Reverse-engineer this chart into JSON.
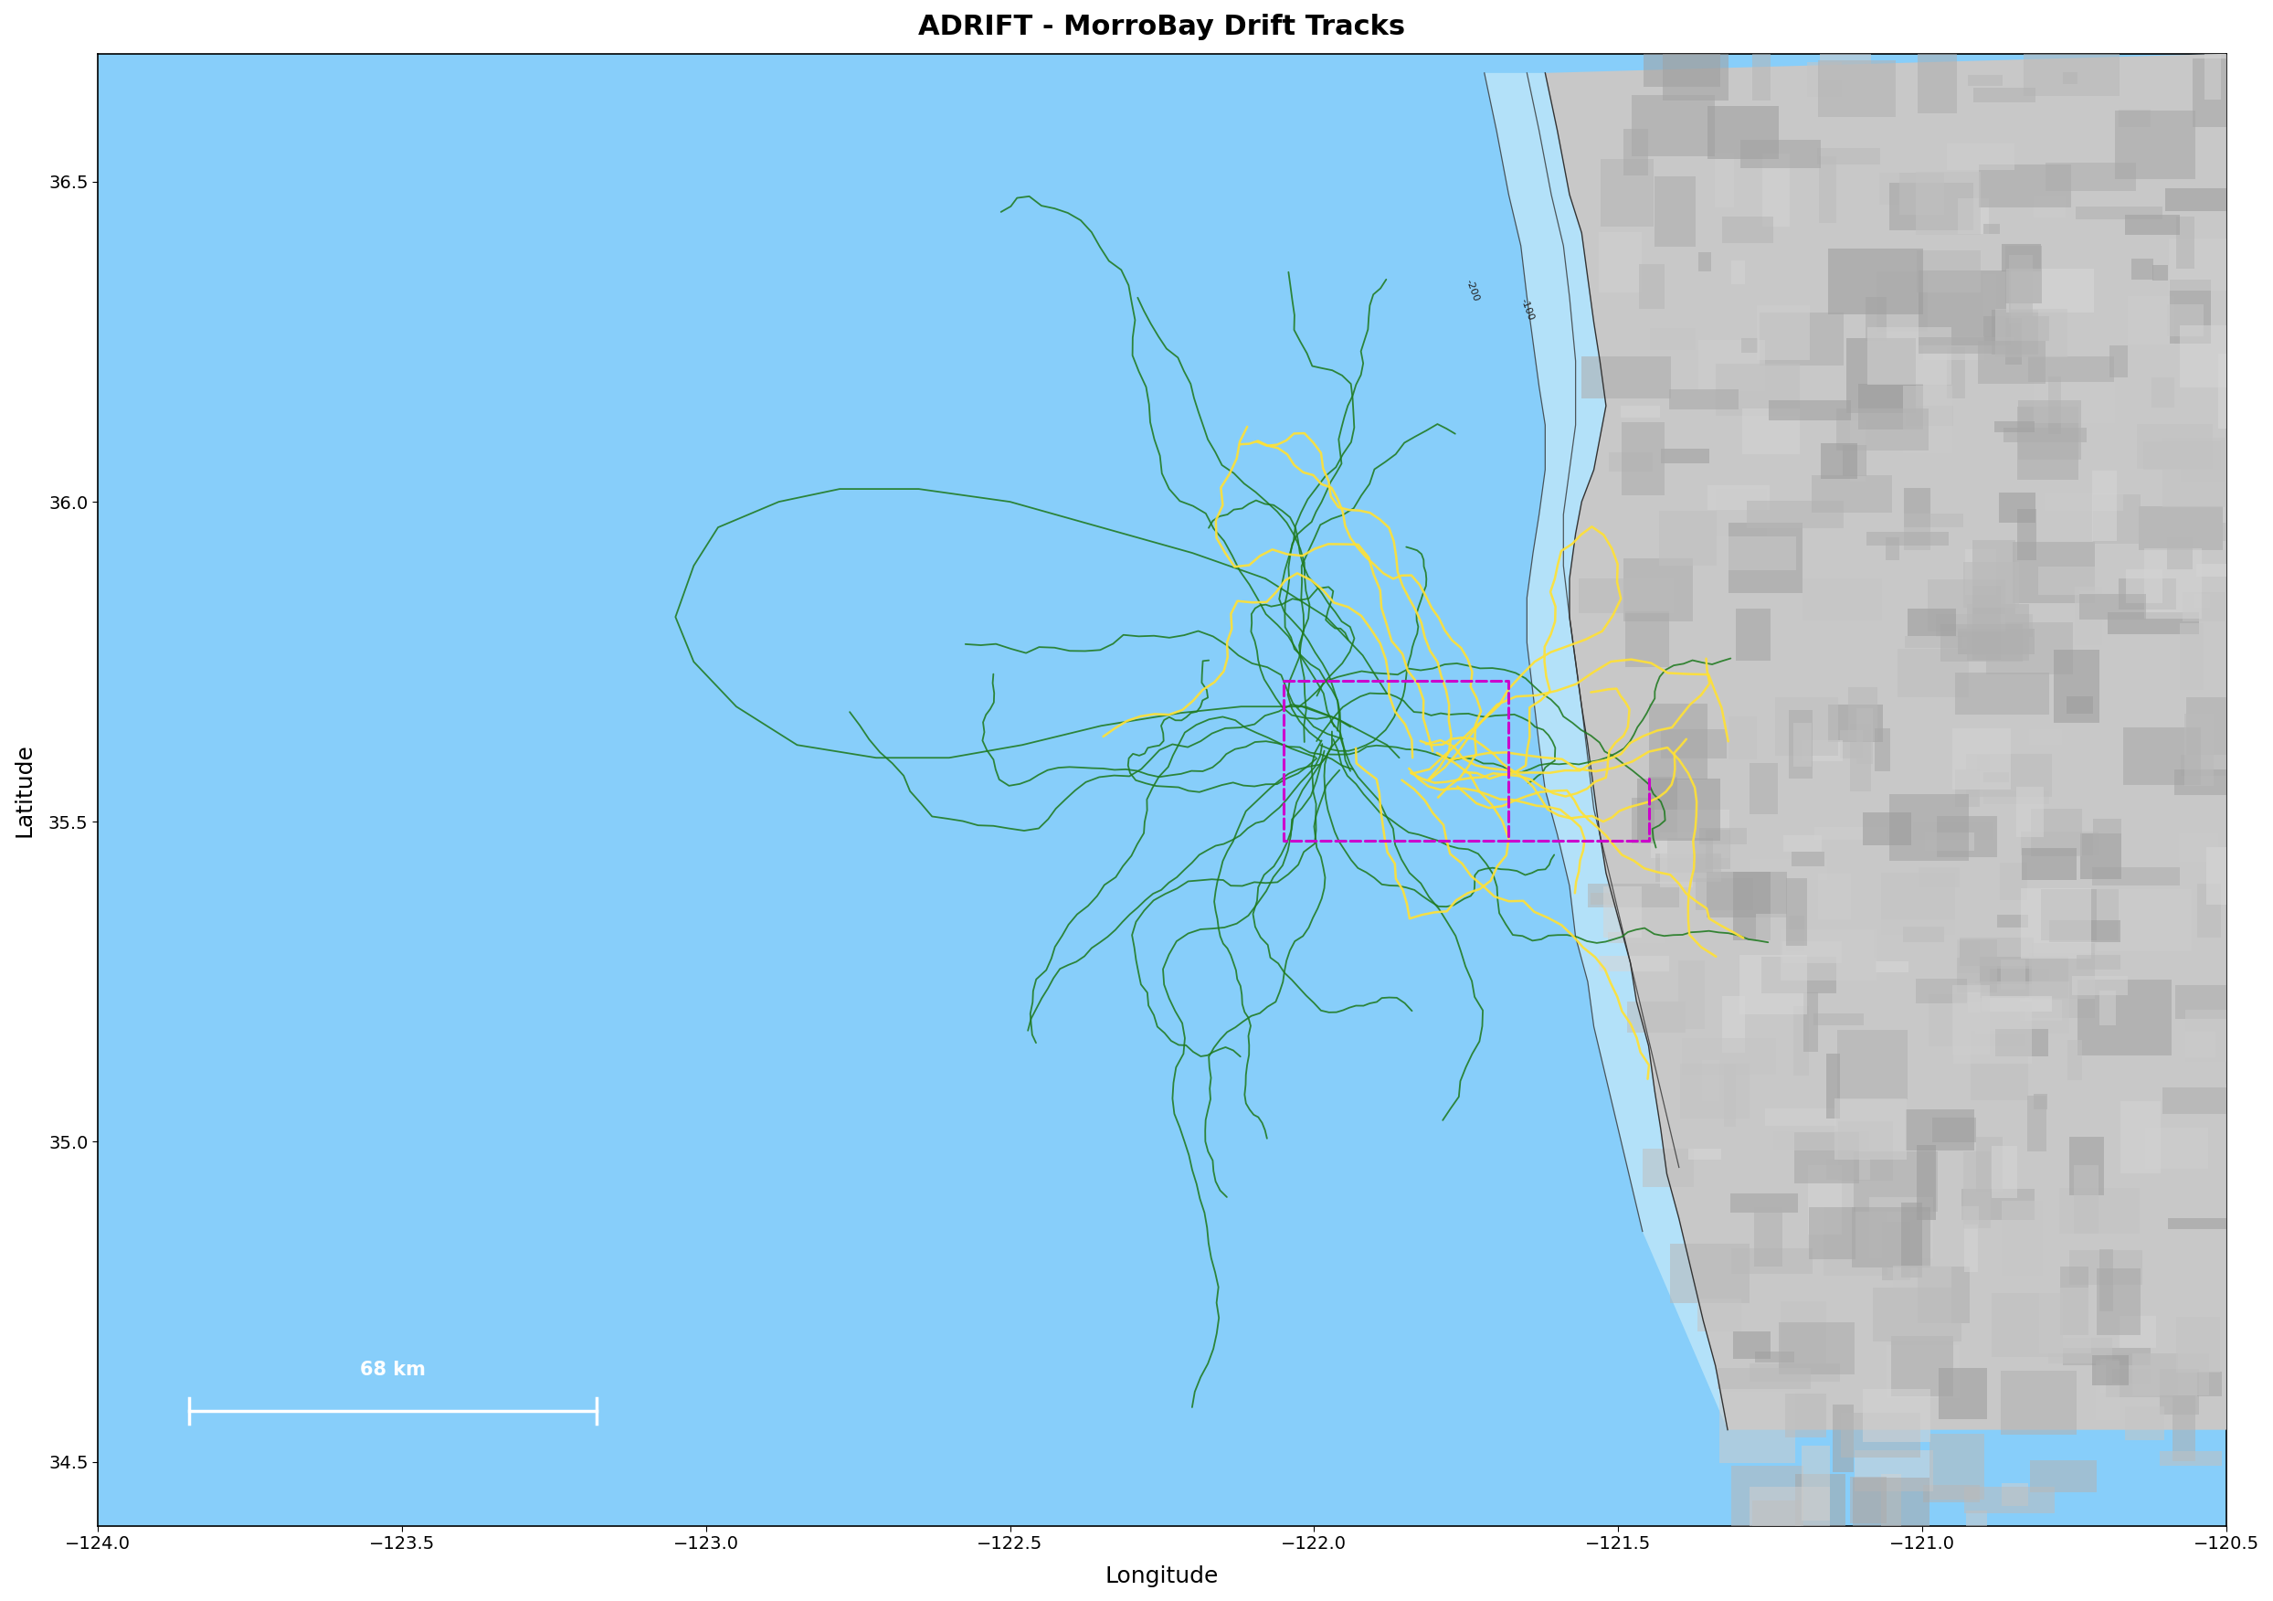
{
  "title": "ADRIFT - MorroBay Drift Tracks",
  "xlabel": "Longitude",
  "ylabel": "Latitude",
  "xlim": [
    -124.0,
    -120.5
  ],
  "ylim": [
    34.4,
    36.7
  ],
  "xticks": [
    -124.0,
    -123.5,
    -123.0,
    -122.5,
    -122.0,
    -121.5,
    -121.0,
    -120.5
  ],
  "yticks": [
    34.5,
    35.0,
    35.5,
    36.0,
    36.5
  ],
  "ocean_color": "#87CEFA",
  "shelf_color": "#B8E4F9",
  "land_color": "#BBBBBB",
  "title_fontsize": 22,
  "axis_label_fontsize": 18,
  "tick_fontsize": 14,
  "upwelling_color": "#1F7A1F",
  "post_upwelling_color": "#FFE135",
  "wea_color": "#CC00CC",
  "isobath_color": "#333333",
  "scale_km": 68,
  "scale_lon_start": -123.85,
  "scale_lon_end": -123.18,
  "scale_lat": 34.58,
  "coast_lon": [
    -121.62,
    -121.6,
    -121.58,
    -121.56,
    -121.55,
    -121.54,
    -121.53,
    -121.52,
    -121.53,
    -121.54,
    -121.56,
    -121.57,
    -121.58,
    -121.58,
    -121.57,
    -121.56,
    -121.55,
    -121.54,
    -121.53,
    -121.52,
    -121.5,
    -121.48,
    -121.47,
    -121.45,
    -121.44,
    -121.43,
    -121.42,
    -121.4,
    -121.38,
    -121.36,
    -121.34,
    -121.32
  ],
  "coast_lat": [
    36.67,
    36.58,
    36.48,
    36.42,
    36.35,
    36.28,
    36.22,
    36.15,
    36.1,
    36.05,
    36.0,
    35.95,
    35.88,
    35.82,
    35.75,
    35.68,
    35.62,
    35.55,
    35.48,
    35.42,
    35.35,
    35.28,
    35.22,
    35.15,
    35.08,
    35.02,
    34.95,
    34.88,
    34.8,
    34.72,
    34.65,
    34.55
  ],
  "iso200_lon": [
    -121.72,
    -121.7,
    -121.68,
    -121.66,
    -121.65,
    -121.64,
    -121.63,
    -121.62,
    -121.62,
    -121.63,
    -121.64,
    -121.65,
    -121.65,
    -121.64,
    -121.63,
    -121.62,
    -121.6,
    -121.58,
    -121.57,
    -121.55,
    -121.54,
    -121.52,
    -121.5,
    -121.48,
    -121.46
  ],
  "iso200_lat": [
    36.67,
    36.58,
    36.48,
    36.4,
    36.32,
    36.25,
    36.18,
    36.12,
    36.05,
    35.98,
    35.92,
    35.85,
    35.78,
    35.7,
    35.62,
    35.55,
    35.48,
    35.4,
    35.32,
    35.25,
    35.18,
    35.1,
    35.02,
    34.94,
    34.86
  ],
  "iso100_lon": [
    -121.65,
    -121.63,
    -121.61,
    -121.59,
    -121.58,
    -121.57,
    -121.57,
    -121.58,
    -121.59,
    -121.59,
    -121.58,
    -121.57,
    -121.56,
    -121.55,
    -121.54,
    -121.52,
    -121.5,
    -121.48,
    -121.46,
    -121.44,
    -121.42,
    -121.4
  ],
  "iso100_lat": [
    36.67,
    36.58,
    36.48,
    36.4,
    36.32,
    36.22,
    36.12,
    36.05,
    35.98,
    35.9,
    35.82,
    35.75,
    35.68,
    35.6,
    35.52,
    35.44,
    35.36,
    35.28,
    35.2,
    35.12,
    35.04,
    34.96
  ],
  "wea_lon": [
    -122.05,
    -121.68,
    -121.68,
    -122.05,
    -122.05
  ],
  "wea_lat": [
    35.72,
    35.72,
    35.47,
    35.47,
    35.72
  ],
  "wea2_lon": [
    -121.68,
    -121.45,
    -121.45,
    -121.68
  ],
  "wea2_lat": [
    35.47,
    35.47,
    35.57,
    35.57
  ]
}
